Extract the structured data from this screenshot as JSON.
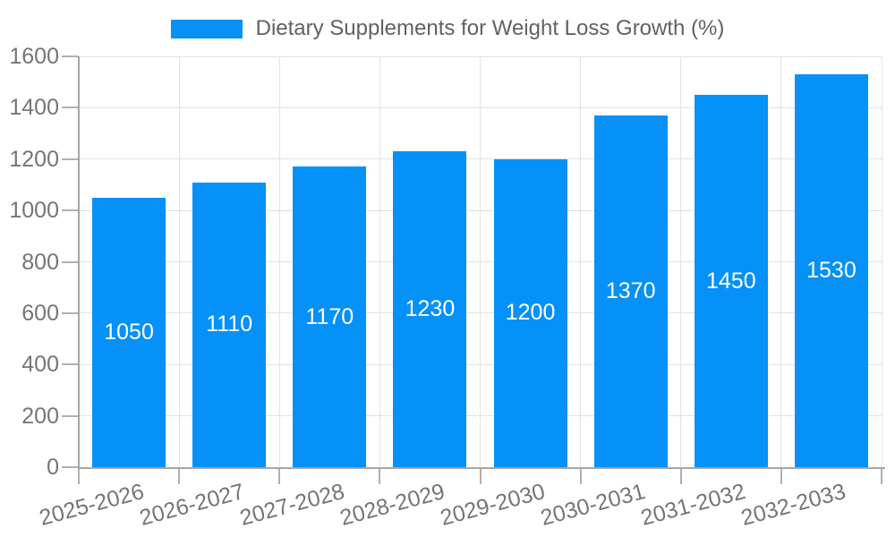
{
  "legend": {
    "label": "Dietary Supplements for Weight Loss Growth (%)"
  },
  "chart_data": {
    "type": "bar",
    "title": "Dietary Supplements for Weight Loss Growth (%)",
    "categories": [
      "2025-2026",
      "2026-2027",
      "2027-2028",
      "2028-2029",
      "2029-2030",
      "2030-2031",
      "2031-2032",
      "2032-2033"
    ],
    "values": [
      1050,
      1110,
      1170,
      1230,
      1200,
      1370,
      1450,
      1530
    ],
    "bar_value_labels": [
      "1050",
      "1110",
      "1170",
      "1230",
      "1200",
      "1370",
      "1450",
      "1530"
    ],
    "xlabel": "",
    "ylabel": "",
    "ylim": [
      0,
      1600
    ],
    "yticks": [
      0,
      200,
      400,
      600,
      800,
      1000,
      1200,
      1400,
      1600
    ],
    "grid": true,
    "legend_position": "top-center",
    "x_label_rotation_deg": -15,
    "colors": {
      "bar": "#0591f8",
      "bar_value_text": "#ffffff",
      "tick_label": "#757575",
      "legend_text": "#616161",
      "gridline": "#e2e2e2",
      "axis": "#a6a6a6",
      "background": "#ffffff"
    }
  }
}
